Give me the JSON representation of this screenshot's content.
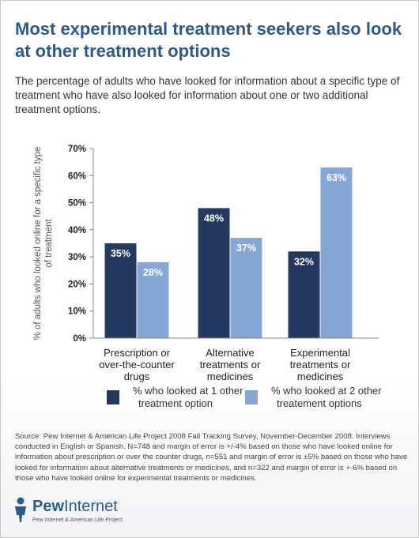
{
  "title": "Most experimental treatment seekers also look at other treatment options",
  "subtitle": "The percentage of adults who have looked for information about a specific type of treatment who have also looked for information about one or two additional treatment options.",
  "chart_data": {
    "type": "bar",
    "ylabel": "% of adults who looked online for a specific type of treatment",
    "ylabel_lines": [
      "% of adults who looked online for a specific type",
      "of treatment"
    ],
    "ylim": [
      0,
      70
    ],
    "yticks": [
      "0%",
      "10%",
      "20%",
      "30%",
      "40%",
      "50%",
      "60%",
      "70%"
    ],
    "categories": [
      [
        "Prescription or",
        "over-the-counter",
        "drugs"
      ],
      [
        "Alternative",
        "treatments or",
        "medicines"
      ],
      [
        "Experimental",
        "treatments or",
        "medicines"
      ]
    ],
    "series": [
      {
        "name": "% who looked at 1 other treatment option",
        "legend_lines": [
          "% who looked at 1 other",
          "treatment option"
        ],
        "color": "#24395f",
        "values": [
          35,
          48,
          32
        ],
        "labels": [
          "35%",
          "48%",
          "32%"
        ]
      },
      {
        "name": "% who looked at 2 other treatement options",
        "legend_lines": [
          "% who looked at 2 other",
          "treatement options"
        ],
        "color": "#86a6d6",
        "values": [
          28,
          37,
          63
        ],
        "labels": [
          "28%",
          "37%",
          "63%"
        ]
      }
    ],
    "grid": false,
    "legend_position": "bottom"
  },
  "source": "Source:  Pew Internet & American Life Project 2008 Fall Tracking Survey, November-December 2008. Interviews conducted in English or Spanish.   N=748 and margin of error is +/-4% based on those who have looked online for information about prescription or over the counter drugs, n=551 and margin of error is ±5% based on those who have looked for information about alternative treatments or medicines, and n=322 and margin of error is +-6% based on those who have looked online for experimental treatments or medicines.",
  "logo": {
    "word_bold": "Pew",
    "word_regular": "Internet",
    "tagline": "Pew Internet & American Life Project",
    "icon": "pew-person-icon"
  }
}
